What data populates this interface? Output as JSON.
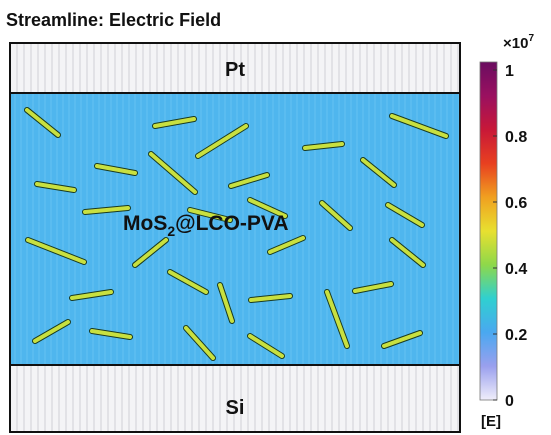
{
  "title": "Streamline: Electric Field",
  "layers": {
    "top": "Pt",
    "middle": {
      "base": "MoS",
      "subscript": "2",
      "rest": "@LCO-PVA"
    },
    "bottom": "Si"
  },
  "colorbar": {
    "multiplier": {
      "base": "×10",
      "exponent": "7"
    },
    "ticks": [
      0,
      0.2,
      0.4,
      0.6,
      0.8,
      1
    ],
    "unit": "[E]"
  }
}
